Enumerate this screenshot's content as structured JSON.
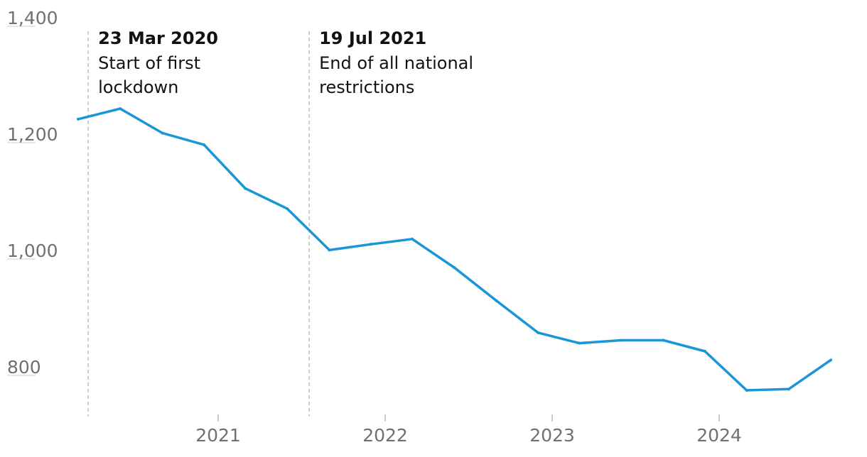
{
  "chart_data": {
    "type": "line",
    "title": "",
    "xlabel": "",
    "ylabel": "",
    "ylim": [
      720,
      1400
    ],
    "yticks": [
      1400,
      1200,
      1000,
      800
    ],
    "ytick_labels": [
      "1,400",
      "1,200",
      "1,000",
      "800"
    ],
    "xticks": [
      "2021-01-01",
      "2022-01-01",
      "2023-01-01",
      "2024-01-01"
    ],
    "xtick_labels": [
      "2021",
      "2022",
      "2023",
      "2024"
    ],
    "grid": false,
    "series": [
      {
        "color": "#1a96d6",
        "x": [
          "2020-03-01",
          "2020-06-01",
          "2020-09-01",
          "2020-12-01",
          "2021-03-01",
          "2021-06-01",
          "2021-09-01",
          "2021-12-01",
          "2022-03-01",
          "2022-06-01",
          "2022-09-01",
          "2022-12-01",
          "2023-03-01",
          "2023-06-01",
          "2023-09-01",
          "2023-12-01",
          "2024-03-01",
          "2024-06-01",
          "2024-09-01"
        ],
        "values": [
          1227,
          1245,
          1203,
          1183,
          1108,
          1073,
          1002,
          1012,
          1021,
          972,
          915,
          860,
          842,
          847,
          847,
          828,
          761,
          763,
          813
        ]
      }
    ],
    "annotations": [
      {
        "x": "2020-03-23",
        "date": "23 Mar 2020",
        "lines": [
          "Start of first",
          "lockdown"
        ]
      },
      {
        "x": "2021-07-19",
        "date": "19 Jul 2021",
        "lines": [
          "End of all national",
          "restrictions"
        ]
      }
    ]
  }
}
